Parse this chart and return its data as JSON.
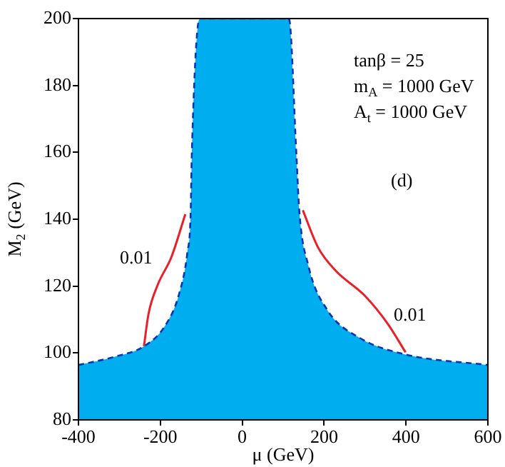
{
  "chart_data": {
    "type": "area",
    "xlabel": "μ (GeV)",
    "ylabel": "M$_{2}$ (GeV)",
    "xlim": [
      -400,
      600
    ],
    "xticks": [
      -400,
      -200,
      0,
      200,
      400,
      600
    ],
    "ylim": [
      80,
      200
    ],
    "yticks": [
      80,
      100,
      120,
      140,
      160,
      180,
      200
    ],
    "grid": false,
    "legend": false,
    "line_style": "dashed",
    "series": [
      {
        "color": "#00aeef",
        "x": [
          -400,
          -314,
          -240,
          -189,
          -155,
          -134,
          -126,
          -123,
          -104,
          0,
          114,
          132,
          139,
          162,
          207,
          287,
          401,
          600
        ],
        "values": [
          96.4,
          98.8,
          102,
          108,
          117.3,
          130,
          141.5,
          160,
          200,
          200,
          200,
          160,
          143,
          125.9,
          113,
          104.5,
          99.5,
          96.4
        ]
      },
      {
        "type": "line",
        "line_style": "solid",
        "color": "#e8202a",
        "x": [
          -240,
          -229,
          -207,
          -173,
          -139
        ],
        "values": [
          102,
          111.6,
          120.2,
          128.7,
          141.5
        ]
      },
      {
        "type": "line",
        "line_style": "solid",
        "color": "#e8202a",
        "x": [
          148,
          185,
          230,
          298,
          355,
          399
        ],
        "values": [
          142.7,
          131.6,
          124.4,
          117.3,
          108.8,
          100.2
        ]
      }
    ],
    "annotations": [
      "0.01",
      "0.01",
      "tanβ = 25",
      "m$_{A}$ = 1000 GeV",
      "A$_{t}$ = 1000 GeV",
      "(d)"
    ]
  }
}
